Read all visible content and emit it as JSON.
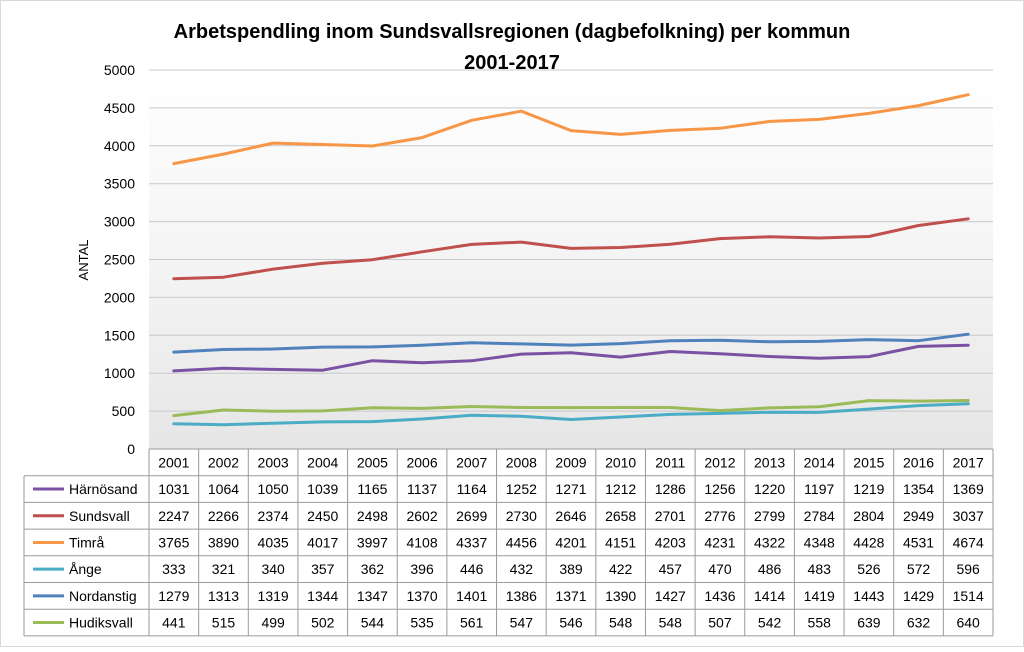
{
  "chart_data": {
    "type": "line",
    "title_line1": "Arbetspendling inom Sundsvallsregionen (dagbefolkning) per kommun",
    "title_line2": "2001-2017",
    "xlabel": "",
    "ylabel": "ANTAL",
    "ylim": [
      0,
      5000
    ],
    "yticks": [
      0,
      500,
      1000,
      1500,
      2000,
      2500,
      3000,
      3500,
      4000,
      4500,
      5000
    ],
    "grid": true,
    "legend": "data-table-below",
    "categories": [
      "2001",
      "2002",
      "2003",
      "2004",
      "2005",
      "2006",
      "2007",
      "2008",
      "2009",
      "2010",
      "2011",
      "2012",
      "2013",
      "2014",
      "2015",
      "2016",
      "2017"
    ],
    "series": [
      {
        "name": "Härnösand",
        "color": "#7B52A3",
        "values": [
          1031,
          1064,
          1050,
          1039,
          1165,
          1137,
          1164,
          1252,
          1271,
          1212,
          1286,
          1256,
          1220,
          1197,
          1219,
          1354,
          1369
        ]
      },
      {
        "name": "Sundsvall",
        "color": "#C0504D",
        "values": [
          2247,
          2266,
          2374,
          2450,
          2498,
          2602,
          2699,
          2730,
          2646,
          2658,
          2701,
          2776,
          2799,
          2784,
          2804,
          2949,
          3037
        ]
      },
      {
        "name": "Timrå",
        "color": "#F79646",
        "values": [
          3765,
          3890,
          4035,
          4017,
          3997,
          4108,
          4337,
          4456,
          4201,
          4151,
          4203,
          4231,
          4322,
          4348,
          4428,
          4531,
          4674
        ]
      },
      {
        "name": "Ånge",
        "color": "#4BACC6",
        "values": [
          333,
          321,
          340,
          357,
          362,
          396,
          446,
          432,
          389,
          422,
          457,
          470,
          486,
          483,
          526,
          572,
          596
        ]
      },
      {
        "name": "Nordanstig",
        "color": "#4F81BD",
        "values": [
          1279,
          1313,
          1319,
          1344,
          1347,
          1370,
          1401,
          1386,
          1371,
          1390,
          1427,
          1436,
          1414,
          1419,
          1443,
          1429,
          1514
        ]
      },
      {
        "name": "Hudiksvall",
        "color": "#9BBB59",
        "values": [
          441,
          515,
          499,
          502,
          544,
          535,
          561,
          547,
          546,
          548,
          548,
          507,
          542,
          558,
          639,
          632,
          640
        ]
      }
    ]
  }
}
